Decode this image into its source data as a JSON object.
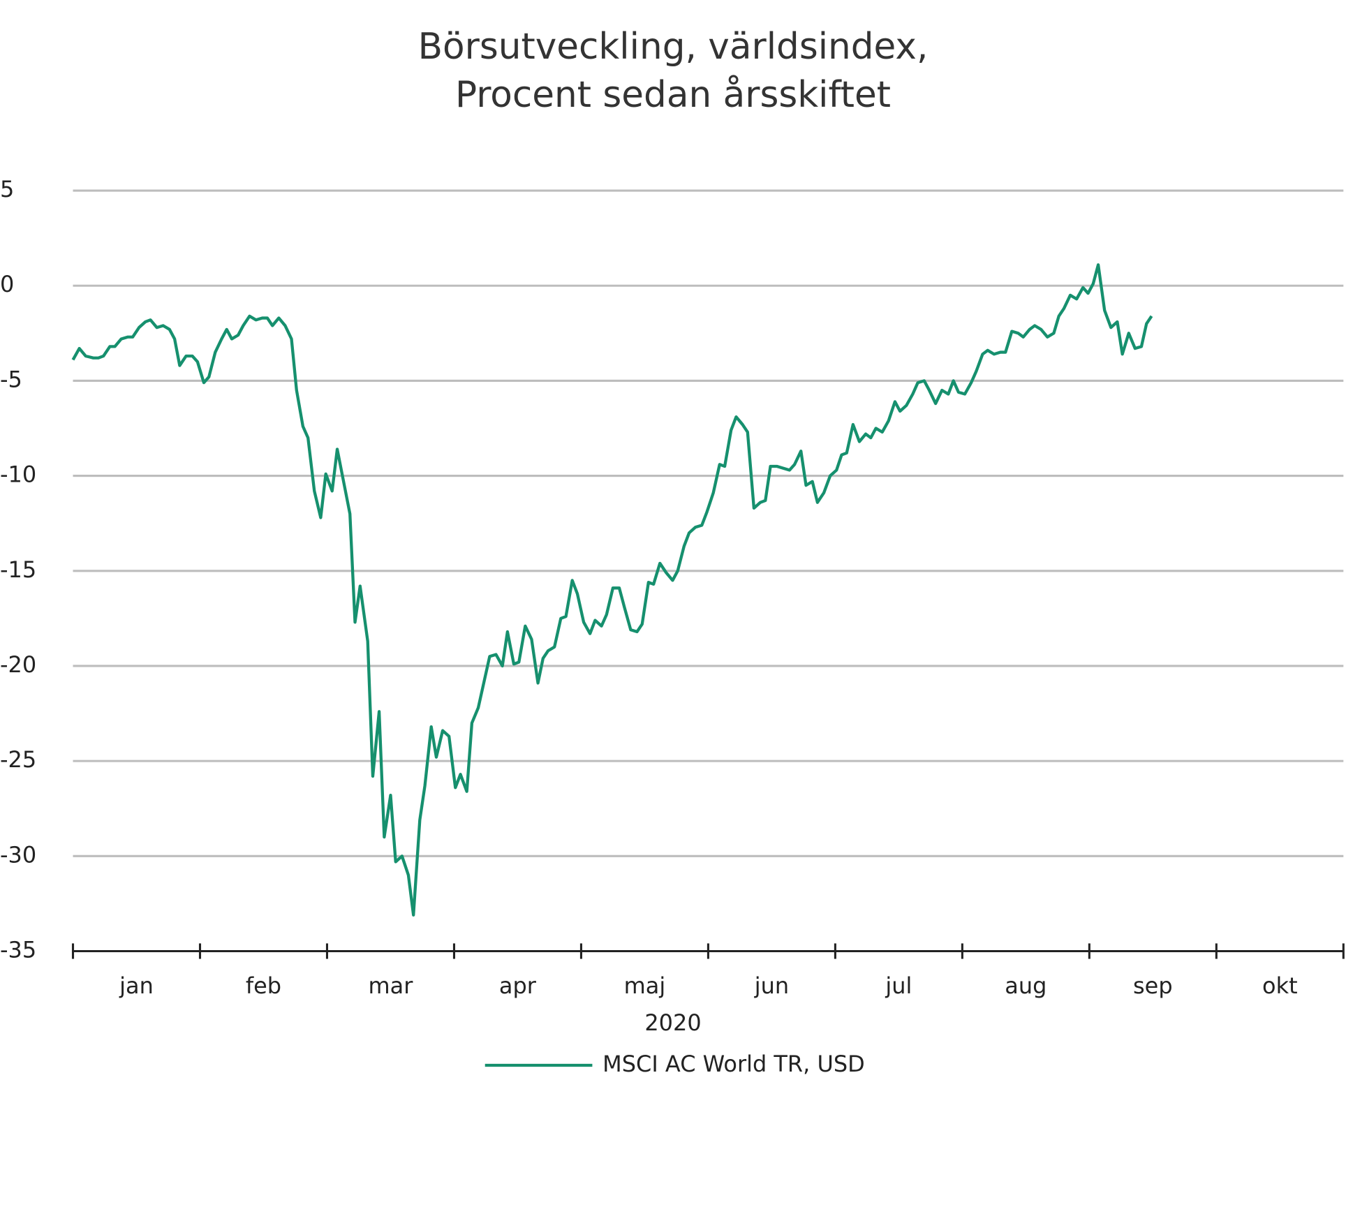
{
  "chart_data": {
    "type": "line",
    "title": "Börsutveckling, världsindex,",
    "subtitle": "Procent sedan årsskiftet",
    "x_label": "2020",
    "categories": [
      "jan",
      "feb",
      "mar",
      "apr",
      "maj",
      "jun",
      "jul",
      "aug",
      "sep",
      "okt"
    ],
    "xlim": [
      0,
      10
    ],
    "xticks": [
      0,
      1,
      2,
      3,
      4,
      5,
      6,
      7,
      8,
      9,
      10
    ],
    "ylim": [
      -35,
      5
    ],
    "yticks": [
      5,
      0,
      -5,
      -10,
      -15,
      -20,
      -25,
      -30,
      -35
    ],
    "grid": true,
    "legend": "bottom",
    "x": [
      0,
      0.05,
      0.1,
      0.16,
      0.2,
      0.24,
      0.29,
      0.33,
      0.38,
      0.43,
      0.47,
      0.52,
      0.57,
      0.61,
      0.66,
      0.71,
      0.76,
      0.8,
      0.84,
      0.89,
      0.94,
      0.98,
      1.03,
      1.07,
      1.12,
      1.17,
      1.21,
      1.25,
      1.3,
      1.34,
      1.39,
      1.44,
      1.49,
      1.53,
      1.57,
      1.62,
      1.67,
      1.72,
      1.76,
      1.81,
      1.85,
      1.9,
      1.95,
      1.99,
      2.04,
      2.08,
      2.13,
      2.18,
      2.22,
      2.26,
      2.32,
      2.36,
      2.41,
      2.45,
      2.5,
      2.54,
      2.59,
      2.64,
      2.68,
      2.73,
      2.77,
      2.82,
      2.86,
      2.91,
      2.96,
      3.01,
      3.05,
      3.1,
      3.14,
      3.19,
      3.24,
      3.28,
      3.33,
      3.38,
      3.42,
      3.47,
      3.51,
      3.56,
      3.61,
      3.66,
      3.7,
      3.74,
      3.79,
      3.84,
      3.88,
      3.93,
      3.97,
      4.02,
      4.07,
      4.11,
      4.16,
      4.2,
      4.25,
      4.3,
      4.34,
      4.39,
      4.44,
      4.48,
      4.53,
      4.57,
      4.62,
      4.67,
      4.72,
      4.76,
      4.81,
      4.85,
      4.9,
      4.95,
      4.99,
      5.04,
      5.09,
      5.13,
      5.18,
      5.22,
      5.27,
      5.31,
      5.36,
      5.41,
      5.45,
      5.49,
      5.54,
      5.59,
      5.64,
      5.68,
      5.73,
      5.77,
      5.82,
      5.86,
      5.91,
      5.96,
      6.01,
      6.05,
      6.09,
      6.14,
      6.19,
      6.24,
      6.28,
      6.32,
      6.37,
      6.42,
      6.47,
      6.51,
      6.56,
      6.61,
      6.65,
      6.7,
      6.74,
      6.79,
      6.84,
      6.89,
      6.93,
      6.97,
      7.02,
      7.07,
      7.11,
      7.16,
      7.2,
      7.25,
      7.3,
      7.34,
      7.39,
      7.44,
      7.48,
      7.53,
      7.57,
      7.62,
      7.67,
      7.72,
      7.76,
      7.8,
      7.85,
      7.9,
      7.95,
      7.99,
      8.03,
      8.07,
      8.12,
      8.17,
      8.22,
      8.26,
      8.31,
      8.36,
      8.41,
      8.45,
      8.49
    ],
    "series": [
      {
        "name": "MSCI AC World TR, USD",
        "color": "#16906e",
        "values": [
          -3.9,
          -3.3,
          -3.7,
          -3.8,
          -3.8,
          -3.7,
          -3.2,
          -3.2,
          -2.8,
          -2.7,
          -2.7,
          -2.2,
          -1.9,
          -1.8,
          -2.2,
          -2.1,
          -2.3,
          -2.8,
          -4.2,
          -3.7,
          -3.7,
          -4.0,
          -5.1,
          -4.8,
          -3.5,
          -2.8,
          -2.3,
          -2.8,
          -2.6,
          -2.1,
          -1.6,
          -1.8,
          -1.7,
          -1.7,
          -2.1,
          -1.7,
          -2.1,
          -2.8,
          -5.5,
          -7.4,
          -8.0,
          -10.8,
          -12.2,
          -9.9,
          -10.8,
          -8.6,
          -10.3,
          -12.0,
          -17.7,
          -15.8,
          -18.7,
          -25.8,
          -22.4,
          -29.0,
          -26.8,
          -30.3,
          -30.0,
          -31.0,
          -33.1,
          -28.1,
          -26.3,
          -23.2,
          -24.8,
          -23.4,
          -23.7,
          -26.4,
          -25.7,
          -26.6,
          -23.0,
          -22.2,
          -20.7,
          -19.5,
          -19.4,
          -20.0,
          -18.2,
          -19.9,
          -19.8,
          -17.9,
          -18.6,
          -20.9,
          -19.6,
          -19.2,
          -19.0,
          -17.5,
          -17.4,
          -15.5,
          -16.2,
          -17.7,
          -18.3,
          -17.6,
          -17.9,
          -17.3,
          -15.9,
          -15.9,
          -16.9,
          -18.1,
          -18.2,
          -17.8,
          -15.6,
          -15.7,
          -14.6,
          -15.1,
          -15.5,
          -15.0,
          -13.7,
          -13.0,
          -12.7,
          -12.6,
          -11.9,
          -10.9,
          -9.4,
          -9.5,
          -7.6,
          -6.9,
          -7.3,
          -7.7,
          -11.7,
          -11.4,
          -11.3,
          -9.5,
          -9.5,
          -9.6,
          -9.7,
          -9.4,
          -8.7,
          -10.5,
          -10.3,
          -11.4,
          -10.9,
          -10.0,
          -9.7,
          -8.9,
          -8.8,
          -7.3,
          -8.2,
          -7.8,
          -8.0,
          -7.5,
          -7.7,
          -7.1,
          -6.1,
          -6.6,
          -6.3,
          -5.7,
          -5.1,
          -5.0,
          -5.5,
          -6.2,
          -5.5,
          -5.7,
          -5.0,
          -5.6,
          -5.7,
          -5.1,
          -4.5,
          -3.6,
          -3.4,
          -3.6,
          -3.5,
          -3.5,
          -2.4,
          -2.5,
          -2.7,
          -2.3,
          -2.1,
          -2.3,
          -2.7,
          -2.5,
          -1.6,
          -1.2,
          -0.5,
          -0.7,
          -0.1,
          -0.4,
          0.1,
          1.1,
          -1.3,
          -2.2,
          -1.9,
          -3.6,
          -2.5,
          -3.3,
          -3.2,
          -2.0,
          -1.6
        ]
      }
    ]
  }
}
